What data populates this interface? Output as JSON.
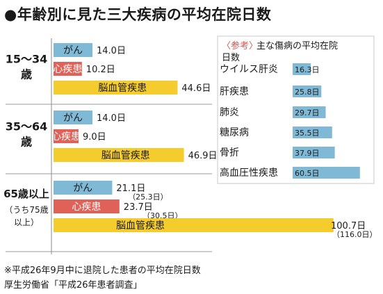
{
  "title": "●年齢別に見た三大疾病の平均在院日数",
  "chart_data": {
    "type": "bar",
    "orientation": "horizontal",
    "unit_suffix": "日",
    "series_colors": {
      "がん": "#7fb9d6",
      "心疾患": "#e06158",
      "脳血管疾患": "#f5cc2e"
    },
    "groups": [
      {
        "label_lines": [
          "15～34",
          "歳"
        ],
        "bars": [
          {
            "name": "がん",
            "value": 14.0,
            "label": "14.0日"
          },
          {
            "name": "心疾患",
            "value": 10.2,
            "label": "10.2日"
          },
          {
            "name": "脳血管疾患",
            "value": 44.6,
            "label": "44.6日"
          }
        ]
      },
      {
        "label_lines": [
          "35～64",
          "歳"
        ],
        "bars": [
          {
            "name": "がん",
            "value": 14.0,
            "label": "14.0日"
          },
          {
            "name": "心疾患",
            "value": 9.0,
            "label": "9.0日"
          },
          {
            "name": "脳血管疾患",
            "value": 46.9,
            "label": "46.9日"
          }
        ]
      },
      {
        "label_lines": [
          "65歳以上",
          "（うち75歳",
          "以上）"
        ],
        "bars": [
          {
            "name": "がん",
            "value": 21.1,
            "label": "21.1日",
            "sub_value": 25.3,
            "sub_label": "（25.3日）"
          },
          {
            "name": "心疾患",
            "value": 23.7,
            "label": "23.7日",
            "sub_value": 30.5,
            "sub_label": "（30.5日）"
          },
          {
            "name": "脳血管疾患",
            "value": 100.7,
            "label": "100.7日",
            "sub_value": 116.0,
            "sub_label": "（116.0日）"
          }
        ]
      }
    ],
    "reference": {
      "title_tag": "〈参考〉",
      "title_rest": "主な傷病の平均在院",
      "title_line2": "日数",
      "color": "#7fb9d6",
      "items": [
        {
          "name": "ウイルス肝炎",
          "value": 16.3,
          "label": "16.3日"
        },
        {
          "name": "肝疾患",
          "value": 25.8,
          "label": "25.8日"
        },
        {
          "name": "肺炎",
          "value": 29.7,
          "label": "29.7日"
        },
        {
          "name": "糖尿病",
          "value": 35.5,
          "label": "35.5日"
        },
        {
          "name": "骨折",
          "value": 37.9,
          "label": "37.9日"
        },
        {
          "name": "高血圧性疾患",
          "value": 60.5,
          "label": "60.5日"
        }
      ]
    }
  },
  "footnote": "※平成26年9月中に退院した患者の平均在院日数",
  "source": "厚生労働省「平成26年患者調査」"
}
